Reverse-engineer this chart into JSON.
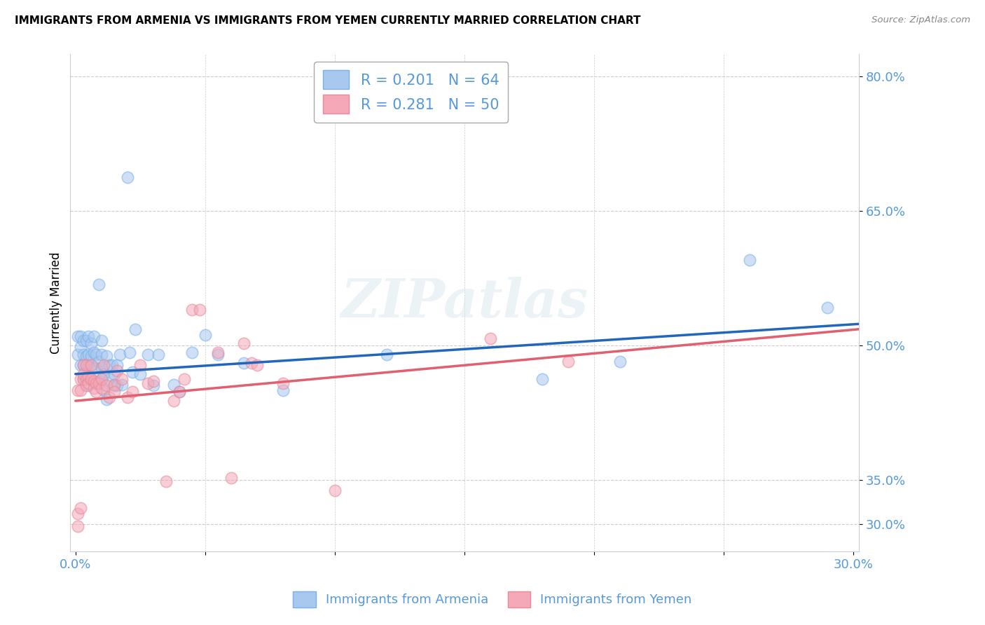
{
  "title": "IMMIGRANTS FROM ARMENIA VS IMMIGRANTS FROM YEMEN CURRENTLY MARRIED CORRELATION CHART",
  "source": "Source: ZipAtlas.com",
  "ylabel": "Currently Married",
  "xlim": [
    -0.002,
    0.302
  ],
  "ylim": [
    0.27,
    0.825
  ],
  "ytick_vals": [
    0.3,
    0.35,
    0.5,
    0.65,
    0.8
  ],
  "ytick_labels": [
    "30.0%",
    "35.0%",
    "50.0%",
    "65.0%",
    "80.0%"
  ],
  "xtick_vals": [
    0.0,
    0.05,
    0.1,
    0.15,
    0.2,
    0.25,
    0.3
  ],
  "xtick_labels": [
    "0.0%",
    "",
    "",
    "",
    "",
    "",
    "30.0%"
  ],
  "armenia_color": "#a8c8f0",
  "yemen_color": "#f4a8b8",
  "armenia_edge_color": "#7ab0e8",
  "yemen_edge_color": "#e88898",
  "armenia_line_color": "#2266bb",
  "yemen_line_color": "#e06070",
  "armenia_R": 0.201,
  "armenia_N": 64,
  "yemen_R": 0.281,
  "yemen_N": 50,
  "legend_label_armenia": "Immigrants from Armenia",
  "legend_label_yemen": "Immigrants from Yemen",
  "watermark": "ZIPatlas",
  "tick_color": "#5599dd",
  "grid_color": "#cccccc",
  "armenia_line_intercept": 0.468,
  "armenia_line_slope": 0.185,
  "yemen_line_intercept": 0.438,
  "yemen_line_slope": 0.265,
  "armenia_x": [
    0.001,
    0.001,
    0.002,
    0.002,
    0.002,
    0.003,
    0.003,
    0.003,
    0.003,
    0.004,
    0.004,
    0.004,
    0.005,
    0.005,
    0.005,
    0.005,
    0.006,
    0.006,
    0.006,
    0.007,
    0.007,
    0.007,
    0.008,
    0.008,
    0.009,
    0.009,
    0.009,
    0.01,
    0.01,
    0.01,
    0.01,
    0.011,
    0.011,
    0.012,
    0.012,
    0.013,
    0.013,
    0.014,
    0.015,
    0.015,
    0.016,
    0.016,
    0.017,
    0.018,
    0.02,
    0.021,
    0.022,
    0.023,
    0.025,
    0.028,
    0.03,
    0.032,
    0.038,
    0.04,
    0.045,
    0.05,
    0.055,
    0.065,
    0.08,
    0.12,
    0.18,
    0.21,
    0.26,
    0.29
  ],
  "armenia_y": [
    0.49,
    0.51,
    0.478,
    0.498,
    0.51,
    0.49,
    0.462,
    0.505,
    0.478,
    0.505,
    0.488,
    0.465,
    0.49,
    0.51,
    0.478,
    0.455,
    0.502,
    0.488,
    0.462,
    0.492,
    0.475,
    0.51,
    0.475,
    0.49,
    0.568,
    0.482,
    0.46,
    0.505,
    0.49,
    0.475,
    0.462,
    0.45,
    0.468,
    0.44,
    0.488,
    0.478,
    0.462,
    0.478,
    0.455,
    0.468,
    0.478,
    0.455,
    0.49,
    0.456,
    0.688,
    0.492,
    0.47,
    0.518,
    0.468,
    0.49,
    0.455,
    0.49,
    0.456,
    0.448,
    0.492,
    0.512,
    0.49,
    0.48,
    0.45,
    0.49,
    0.462,
    0.482,
    0.595,
    0.542
  ],
  "yemen_x": [
    0.001,
    0.001,
    0.001,
    0.002,
    0.002,
    0.002,
    0.003,
    0.003,
    0.003,
    0.004,
    0.004,
    0.004,
    0.005,
    0.005,
    0.006,
    0.006,
    0.007,
    0.007,
    0.008,
    0.008,
    0.009,
    0.01,
    0.01,
    0.011,
    0.012,
    0.013,
    0.015,
    0.015,
    0.016,
    0.018,
    0.02,
    0.022,
    0.025,
    0.028,
    0.03,
    0.035,
    0.038,
    0.04,
    0.042,
    0.045,
    0.048,
    0.055,
    0.06,
    0.065,
    0.068,
    0.07,
    0.08,
    0.1,
    0.16,
    0.19
  ],
  "yemen_y": [
    0.298,
    0.312,
    0.45,
    0.318,
    0.45,
    0.462,
    0.462,
    0.478,
    0.468,
    0.462,
    0.478,
    0.455,
    0.465,
    0.458,
    0.462,
    0.478,
    0.46,
    0.452,
    0.448,
    0.458,
    0.458,
    0.452,
    0.462,
    0.478,
    0.455,
    0.442,
    0.456,
    0.448,
    0.472,
    0.462,
    0.442,
    0.448,
    0.478,
    0.458,
    0.46,
    0.348,
    0.438,
    0.448,
    0.462,
    0.54,
    0.54,
    0.492,
    0.352,
    0.502,
    0.48,
    0.478,
    0.458,
    0.338,
    0.508,
    0.482
  ]
}
